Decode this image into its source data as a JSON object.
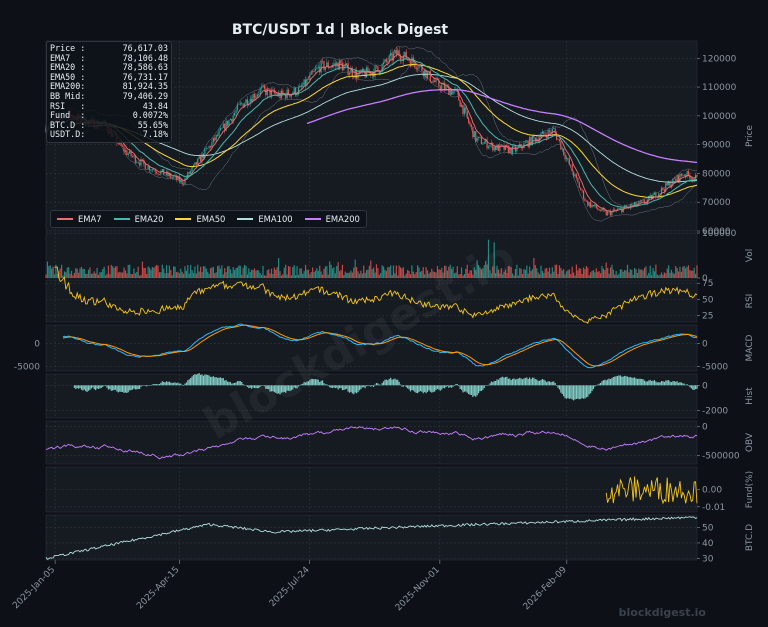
{
  "chart_data": {
    "type": "line",
    "title": "BTC/USDT  1d  |  Block Digest",
    "x_ticks": [
      "2025-Jan-05",
      "2025-Apr-15",
      "2025-Jul-24",
      "2025-Nov-01",
      "2026-Feb-09"
    ],
    "x_range": [
      "2024-Dec-25",
      "2026-Apr-12"
    ],
    "panels": [
      {
        "id": "price",
        "ylabel": "Price",
        "ylim": [
          60000,
          126000
        ],
        "ticks": [
          "60000",
          "70000",
          "80000",
          "90000",
          "100000",
          "110000",
          "120000"
        ]
      },
      {
        "id": "vol",
        "ylabel": "Vol",
        "ylim": [
          0,
          100000
        ],
        "ticks": [
          "0",
          "100000"
        ]
      },
      {
        "id": "rsi",
        "ylabel": "RSI",
        "ylim": [
          15,
          80
        ],
        "ticks": [
          "25",
          "50",
          "75"
        ]
      },
      {
        "id": "macd",
        "ylabel": "MACD",
        "ylim": [
          -6000,
          4000
        ],
        "ticks": [
          "-5000",
          "0"
        ],
        "ticks_right": [
          "-5000",
          "0"
        ]
      },
      {
        "id": "hist",
        "ylabel": "Hist",
        "ylim": [
          -2600,
          900
        ],
        "ticks": [
          "-2000",
          "0"
        ]
      },
      {
        "id": "obv",
        "ylabel": "OBV",
        "ylim": [
          -650000,
          100000
        ],
        "ticks": [
          "-500000",
          "0"
        ]
      },
      {
        "id": "fund",
        "ylabel": "Fund(%)",
        "ylim": [
          -0.013,
          0.013
        ],
        "ticks": [
          "-0.01",
          "0.00"
        ]
      },
      {
        "id": "btcd",
        "ylabel": "BTC.D",
        "ylim": [
          29,
          58
        ],
        "ticks": [
          "30",
          "40",
          "50"
        ]
      }
    ],
    "price_anchors": {
      "x": [
        0,
        0.03,
        0.06,
        0.09,
        0.12,
        0.15,
        0.18,
        0.21,
        0.24,
        0.27,
        0.3,
        0.33,
        0.36,
        0.39,
        0.42,
        0.45,
        0.48,
        0.51,
        0.54,
        0.57,
        0.6,
        0.63,
        0.66,
        0.69,
        0.72,
        0.75,
        0.78,
        0.8,
        0.83,
        0.86,
        0.89,
        0.92,
        0.95,
        0.98,
        1.0
      ],
      "close": [
        96000,
        101000,
        98000,
        97000,
        88000,
        83000,
        80000,
        77000,
        86000,
        95000,
        104000,
        109000,
        107000,
        109000,
        117000,
        118000,
        114000,
        116000,
        122000,
        118000,
        111000,
        108000,
        92000,
        89000,
        88000,
        92000,
        95000,
        85000,
        70000,
        66000,
        68000,
        70000,
        75000,
        80000,
        78000
      ]
    },
    "ema200_start_x": 0.4,
    "legend": [
      "EMA7",
      "EMA20",
      "EMA50",
      "EMA100",
      "EMA200"
    ],
    "colors": {
      "up": "#26a69a",
      "down": "#ef5350",
      "EMA7": "#e57373",
      "EMA20": "#4db6ac",
      "EMA50": "#fdd835",
      "EMA100": "#b2dfdb",
      "EMA200": "#c77dff",
      "rsi": "#f5c518",
      "macd": "#29b6f6",
      "signal": "#ff9800",
      "hist": "#80cbc4",
      "obv": "#c77dff",
      "fund": "#f5c518",
      "btcd": "#b2dfdb",
      "bg": "#161b22",
      "grid": "#30363d"
    }
  },
  "info_box": [
    {
      "k": "Price :",
      "v": "76,617.03"
    },
    {
      "k": "EMA7  :",
      "v": "78,106.48"
    },
    {
      "k": "EMA20 :",
      "v": "78,586.63"
    },
    {
      "k": "EMA50 :",
      "v": "76,731.17"
    },
    {
      "k": "EMA200:",
      "v": "81,924.35"
    },
    {
      "k": "BB Mid:",
      "v": "79,406.29"
    },
    {
      "k": "RSI   :",
      "v": "43.84"
    },
    {
      "k": "Fund  :",
      "v": "0.0072%"
    },
    {
      "k": "BTC.D :",
      "v": "55.65%"
    },
    {
      "k": "USDT.D:",
      "v": "7.18%"
    }
  ],
  "legend_labels": [
    "EMA7",
    "EMA20",
    "EMA50",
    "EMA100",
    "EMA200"
  ],
  "watermark": "blockdigest.io",
  "brand": "blockdigest.io"
}
